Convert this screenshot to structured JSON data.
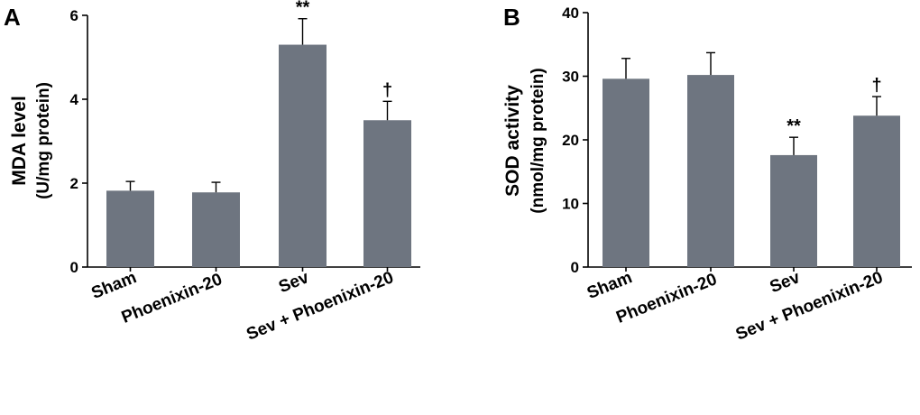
{
  "chart_data": [
    {
      "type": "bar",
      "panel": "A",
      "ylabel": "MDA level",
      "ylabel_unit": "(U/mg protein)",
      "ylim": [
        0,
        6
      ],
      "yticks": [
        0,
        2,
        4,
        6
      ],
      "categories": [
        "Sham",
        "Phoenixin-20",
        "Sev",
        "Sev + Phoenixin-20"
      ],
      "values": [
        1.82,
        1.78,
        5.3,
        3.5
      ],
      "errors": [
        0.22,
        0.24,
        0.62,
        0.45
      ],
      "annotations": [
        "",
        "",
        "**",
        "†"
      ],
      "bar_color": "#6e7580"
    },
    {
      "type": "bar",
      "panel": "B",
      "ylabel": "SOD activity",
      "ylabel_unit": "(nmol/mg protein)",
      "ylim": [
        0,
        40
      ],
      "yticks": [
        0,
        10,
        20,
        30,
        40
      ],
      "categories": [
        "Sham",
        "Phoenixin-20",
        "Sev",
        "Sev + Phoenixin-20"
      ],
      "values": [
        29.6,
        30.2,
        17.6,
        23.8
      ],
      "errors": [
        3.2,
        3.5,
        2.8,
        3.0
      ],
      "annotations": [
        "",
        "",
        "**",
        "†"
      ],
      "bar_color": "#6e7580"
    }
  ]
}
